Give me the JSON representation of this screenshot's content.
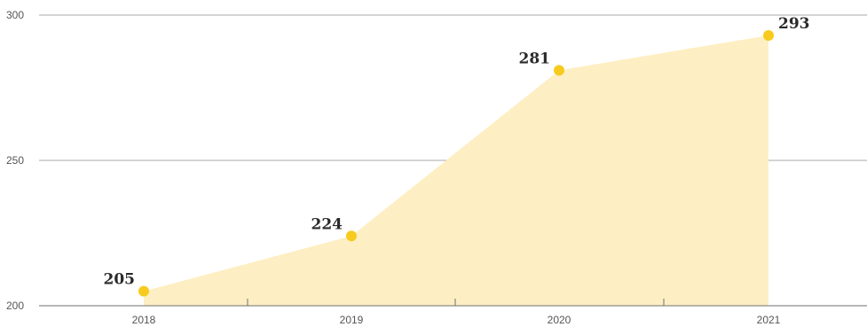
{
  "chart_data": {
    "type": "area",
    "categories": [
      "2018",
      "2019",
      "2020",
      "2021"
    ],
    "values": [
      205,
      224,
      281,
      293
    ],
    "data_labels": [
      "205",
      "224",
      "281",
      "293"
    ],
    "yticks": [
      "200",
      "250",
      "300"
    ],
    "ytick_values": [
      200,
      250,
      300
    ],
    "ylim": [
      200,
      300
    ],
    "title": "",
    "xlabel": "",
    "ylabel": "",
    "grid": true,
    "legend": "none",
    "colors": {
      "fill": "#FDEFC3",
      "marker": "#F7CB1E",
      "gridline": "#a9a9a9",
      "axis": "#6f6f6f",
      "text": "#2a2a2a"
    }
  }
}
